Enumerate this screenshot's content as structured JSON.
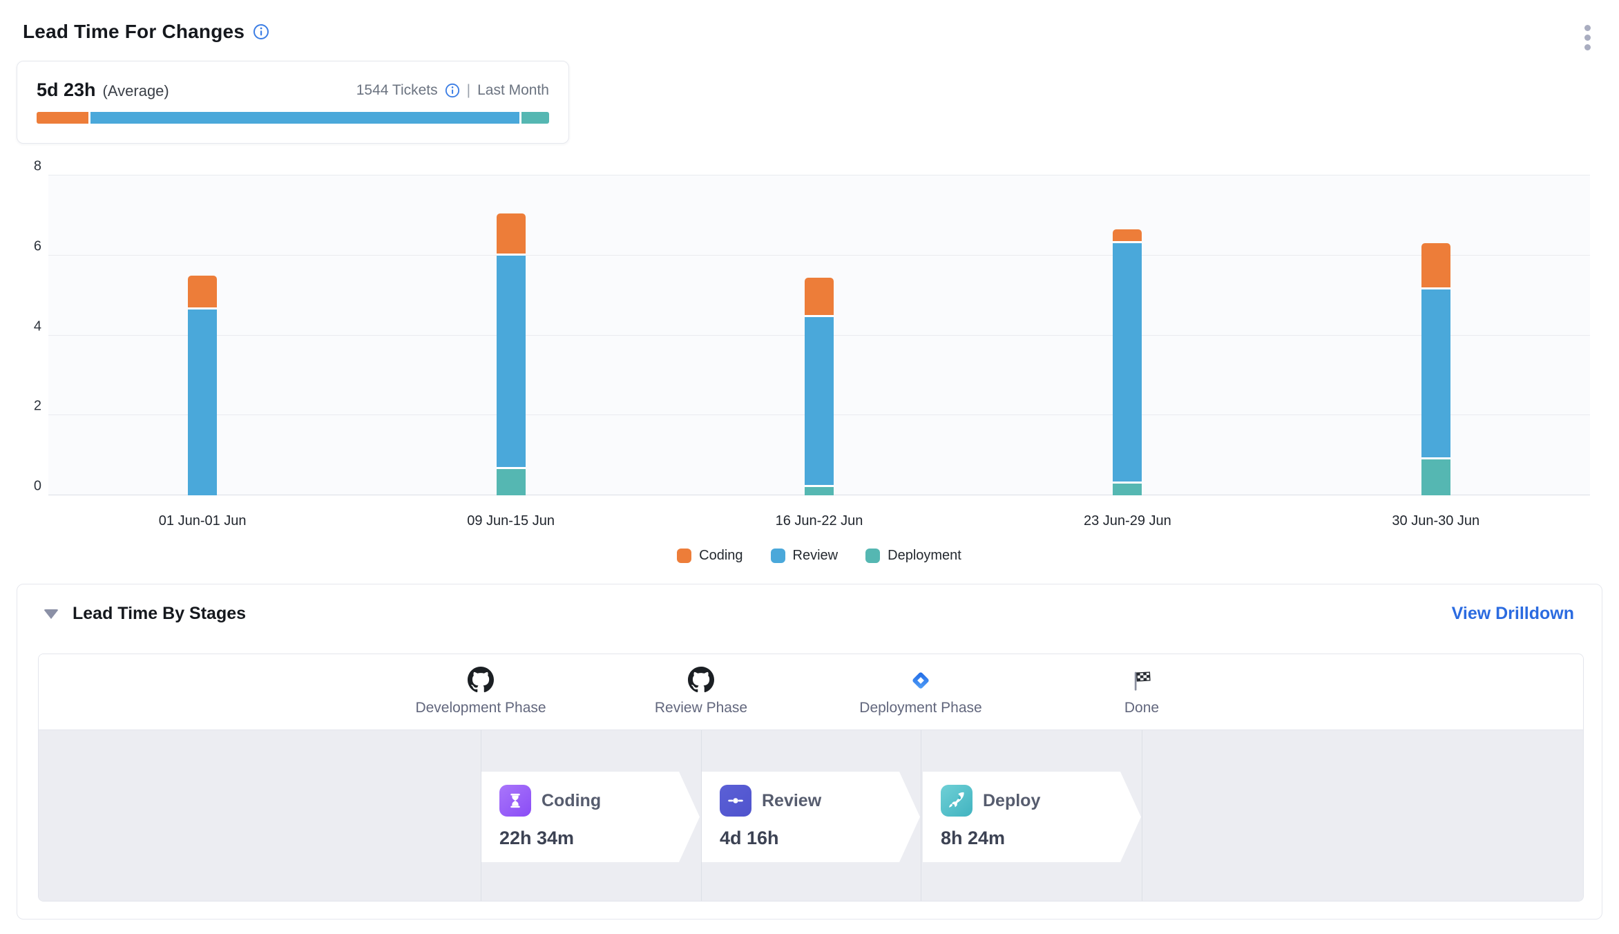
{
  "header": {
    "title": "Lead Time For Changes"
  },
  "summary": {
    "value": "5d 23h",
    "value_label": "(Average)",
    "tickets": "1544 Tickets",
    "separator": "|",
    "period": "Last Month",
    "progress": [
      {
        "name": "Coding",
        "color": "#ed7d39",
        "pct": 10.2
      },
      {
        "name": "Review",
        "color": "#4aa8da",
        "pct": 84.4
      },
      {
        "name": "Deployment",
        "color": "#55b7b2",
        "pct": 5.4
      }
    ]
  },
  "chart_data": {
    "type": "bar",
    "stacked": true,
    "categories": [
      "01 Jun-01 Jun",
      "09 Jun-15 Jun",
      "16 Jun-22 Jun",
      "23 Jun-29 Jun",
      "30 Jun-30 Jun"
    ],
    "series": [
      {
        "name": "Coding",
        "color": "#ed7d39",
        "values": [
          0.85,
          1.05,
          1.0,
          0.35,
          1.15
        ]
      },
      {
        "name": "Review",
        "color": "#4aa8da",
        "values": [
          4.65,
          5.35,
          4.25,
          6.0,
          4.25
        ]
      },
      {
        "name": "Deployment",
        "color": "#55b7b2",
        "values": [
          0,
          0.65,
          0.2,
          0.3,
          0.9
        ]
      }
    ],
    "stack_order_bottom_to_top": [
      "Deployment",
      "Review",
      "Coding"
    ],
    "title": "Lead Time For Changes",
    "xlabel": "",
    "ylabel": "",
    "ylim": [
      0,
      8
    ],
    "yticks": [
      0,
      2,
      4,
      6,
      8
    ],
    "grid": true,
    "legend_position": "bottom"
  },
  "stages_panel": {
    "title": "Lead Time By Stages",
    "link": "View Drilldown",
    "phases": [
      {
        "label": "Development Phase",
        "icon": "github-icon"
      },
      {
        "label": "Review Phase",
        "icon": "github-icon"
      },
      {
        "label": "Deployment Phase",
        "icon": "jira-diamond-icon"
      },
      {
        "label": "Done",
        "icon": "checkered-flag-icon"
      }
    ],
    "stages": [
      {
        "name": "Coding",
        "duration": "22h 34m",
        "icon": "hourglass-icon",
        "color_from": "#a976fa",
        "color_to": "#8a4cf6"
      },
      {
        "name": "Review",
        "duration": "4d 16h",
        "icon": "commit-icon",
        "color_from": "#5b60d6",
        "color_to": "#4f53cd"
      },
      {
        "name": "Deploy",
        "duration": "8h 24m",
        "icon": "rocket-icon",
        "color_from": "#6fd0d6",
        "color_to": "#41b3c0"
      }
    ]
  },
  "colors": {
    "accent_link": "#2b6be0",
    "info_icon": "#3b7de4",
    "coding": "#ed7d39",
    "review": "#4aa8da",
    "deployment": "#55b7b2"
  }
}
